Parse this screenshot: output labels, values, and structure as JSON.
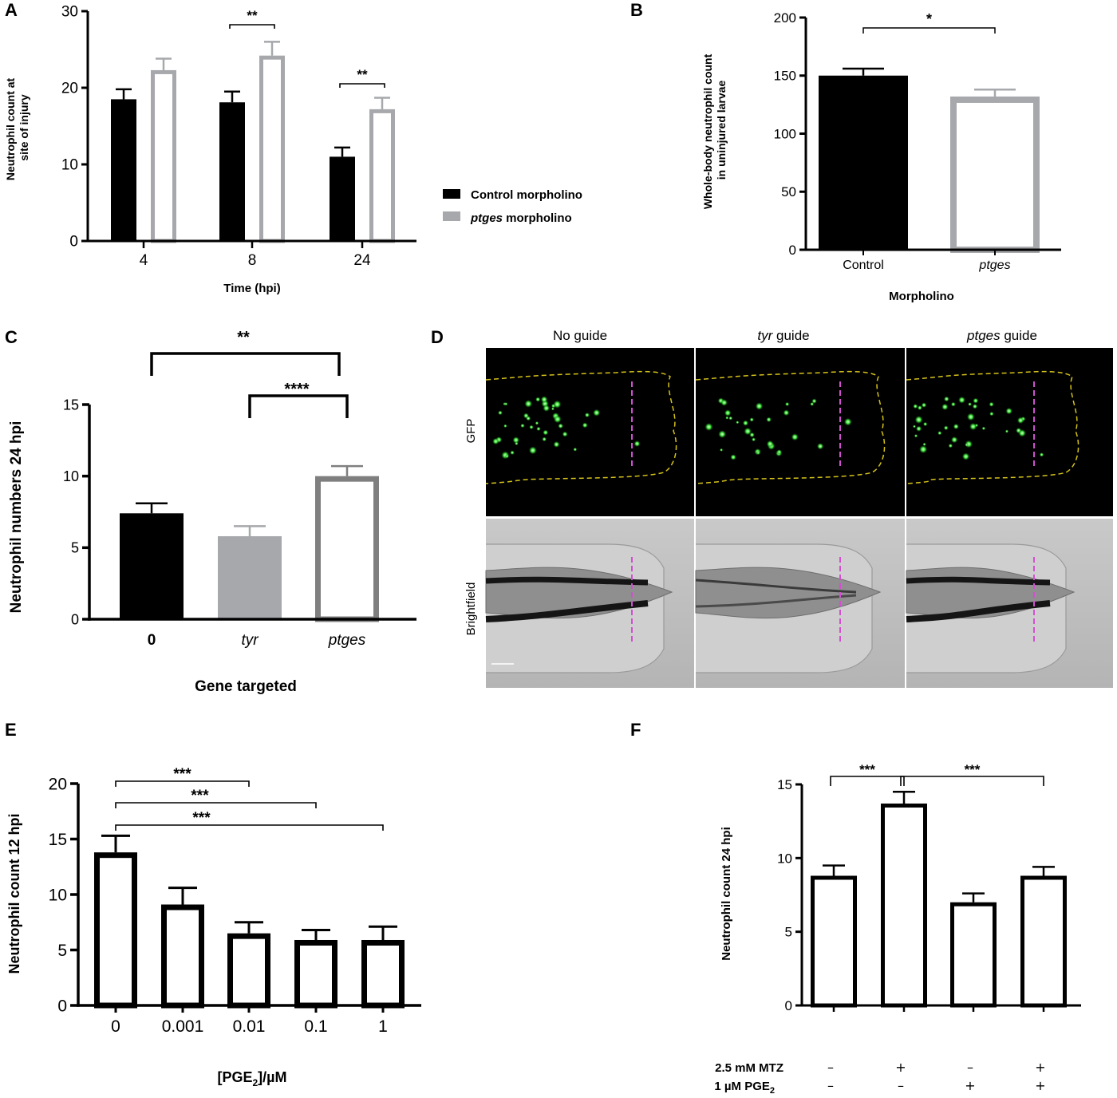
{
  "colors": {
    "black": "#000000",
    "grey": "#a7a8ac",
    "darkgrey": "#7f7f80",
    "dash_yellow": "#d4c21a",
    "dash_magenta": "#d24fd2",
    "gfp_green": "#39e23a"
  },
  "chart_data": [
    {
      "panel": "A",
      "type": "bar",
      "ylabel_lines": [
        "Neutrophil count at",
        "site of injury"
      ],
      "xlabel": "Time (hpi)",
      "categories": [
        "4",
        "8",
        "24"
      ],
      "ylim": [
        0,
        30
      ],
      "yticks": [
        0,
        10,
        20,
        30
      ],
      "series": [
        {
          "name": "Control morpholino",
          "color": "#000000",
          "fill": "solid",
          "values": [
            18.5,
            18.1,
            11.0
          ],
          "errors": [
            1.3,
            1.4,
            1.2
          ]
        },
        {
          "name_italic": "ptges",
          "name": " morpholino",
          "color": "#a7a8ac",
          "fill": "hollow",
          "values": [
            22.3,
            24.2,
            17.2
          ],
          "errors": [
            1.5,
            1.8,
            1.5
          ]
        }
      ],
      "significance": [
        {
          "category": 1,
          "label": "**"
        },
        {
          "category": 2,
          "label": "**"
        }
      ]
    },
    {
      "panel": "B",
      "type": "bar",
      "ylabel_lines": [
        "Whole-body neutrophil count",
        "in uninjured larvae"
      ],
      "xlabel": "Morpholino",
      "categories": [
        "Control",
        "ptges"
      ],
      "ylim": [
        0,
        200
      ],
      "yticks": [
        0,
        50,
        100,
        150,
        200
      ],
      "values": [
        150,
        132
      ],
      "errors": [
        6,
        6
      ],
      "significance": [
        {
          "from": 0,
          "to": 1,
          "label": "*"
        }
      ]
    },
    {
      "panel": "C",
      "type": "bar",
      "ylabel": "Neutrophil numbers 24 hpi",
      "xlabel": "Gene targeted",
      "categories": [
        "0",
        "tyr",
        "ptges"
      ],
      "ylim": [
        0,
        15
      ],
      "yticks": [
        0,
        5,
        10,
        15
      ],
      "values": [
        7.4,
        5.8,
        10.0
      ],
      "errors": [
        0.7,
        0.7,
        0.7
      ],
      "significance": [
        {
          "from": 0,
          "to": 2,
          "label": "**"
        },
        {
          "from": 1,
          "to": 2,
          "label": "****"
        }
      ]
    },
    {
      "panel": "E",
      "type": "bar",
      "ylabel": "Neutrophil count 12 hpi",
      "xlabel_main": "[PGE",
      "xlabel_sub": "2",
      "xlabel_tail": "]/µM",
      "categories": [
        "0",
        "0.001",
        "0.01",
        "0.1",
        "1"
      ],
      "ylim": [
        0,
        20
      ],
      "yticks": [
        0,
        5,
        10,
        15,
        20
      ],
      "values": [
        13.8,
        9.1,
        6.5,
        5.9,
        5.9
      ],
      "errors": [
        1.5,
        1.5,
        1.0,
        0.9,
        1.2
      ],
      "significance": [
        {
          "from": 0,
          "to": 2,
          "label": "***"
        },
        {
          "from": 0,
          "to": 3,
          "label": "***"
        },
        {
          "from": 0,
          "to": 4,
          "label": "***"
        }
      ]
    },
    {
      "panel": "F",
      "type": "bar",
      "ylabel": "Neutrophil count 24 hpi",
      "ylim": [
        0,
        15
      ],
      "yticks": [
        0,
        5,
        10,
        15
      ],
      "values": [
        8.8,
        13.7,
        7.0,
        8.8
      ],
      "errors": [
        0.7,
        0.8,
        0.6,
        0.6
      ],
      "treatment_rows": [
        {
          "label": "2.5 mM MTZ",
          "signs": [
            "–",
            "+",
            "–",
            "+"
          ]
        },
        {
          "label_main": "1 µM PGE",
          "label_sub": "2",
          "signs": [
            "–",
            "–",
            "+",
            "+"
          ]
        }
      ],
      "significance": [
        {
          "from": 0,
          "to": 1,
          "label": "***"
        },
        {
          "from": 1,
          "to": 3,
          "label": "***"
        }
      ]
    }
  ],
  "panel_d": {
    "panel": "D",
    "columns": [
      {
        "title": "No guide"
      },
      {
        "title_italic": "tyr",
        "title": " guide"
      },
      {
        "title_italic": "ptges",
        "title": " guide"
      }
    ],
    "rows": [
      "GFP",
      "Brightfield"
    ]
  },
  "panel_letters": [
    "A",
    "B",
    "C",
    "D",
    "E",
    "F"
  ]
}
